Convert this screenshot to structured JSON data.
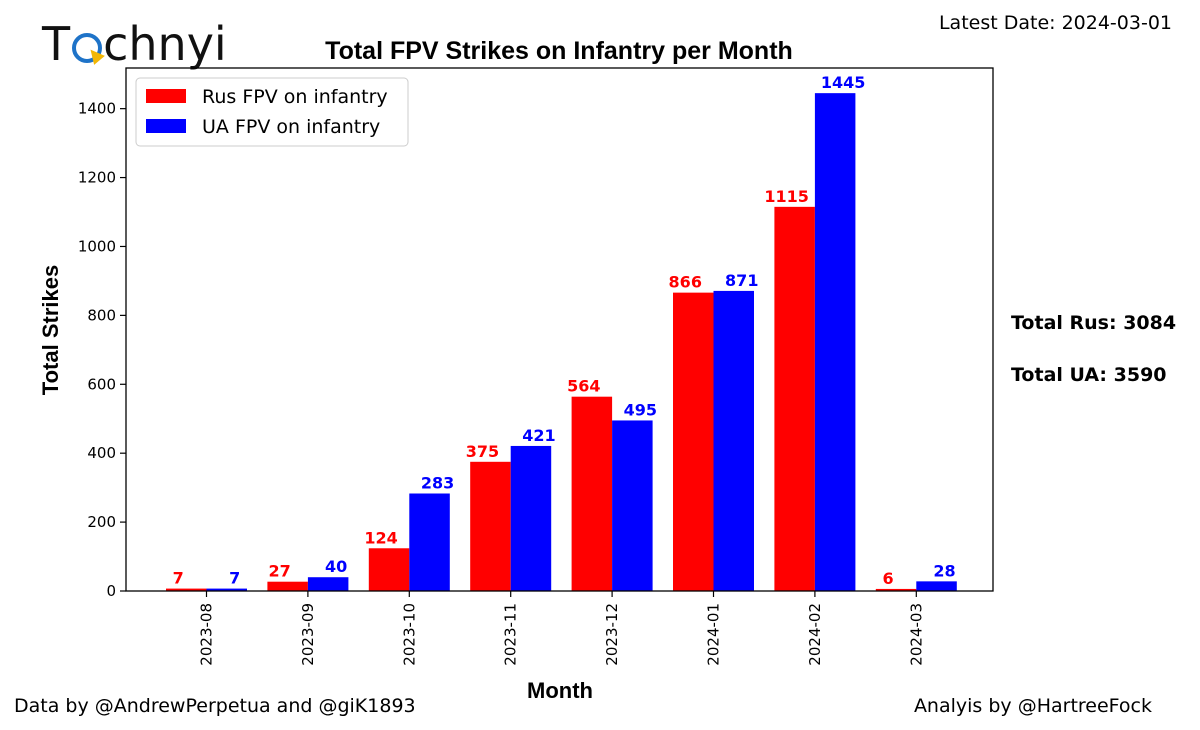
{
  "brand": {
    "logo_text_before": "T",
    "logo_text_after": "chnyi"
  },
  "header": {
    "latest_date": "Latest Date: 2024-03-01"
  },
  "footer": {
    "data_credit": "Data by @AndrewPerpetua and @giK1893",
    "analysis_credit": "Analyis by @HartreeFock"
  },
  "totals": {
    "rus": "Total Rus: 3084",
    "ua": "Total UA: 3590"
  },
  "colors": {
    "rus": "#ff0000",
    "ua": "#0000ff"
  },
  "chart_data": {
    "type": "bar",
    "title": "Total FPV Strikes on Infantry per Month",
    "xlabel": "Month",
    "ylabel": "Total Strikes",
    "ylim": [
      0,
      1518
    ],
    "yticks": [
      0,
      200,
      400,
      600,
      800,
      1000,
      1200,
      1400
    ],
    "categories": [
      "2023-08",
      "2023-09",
      "2023-10",
      "2023-11",
      "2023-12",
      "2024-01",
      "2024-02",
      "2024-03"
    ],
    "series": [
      {
        "name": "Rus FPV on infantry",
        "values": [
          7,
          27,
          124,
          375,
          564,
          866,
          1115,
          6
        ]
      },
      {
        "name": "UA FPV on infantry",
        "values": [
          7,
          40,
          283,
          421,
          495,
          871,
          1445,
          28
        ]
      }
    ],
    "legend_position": "top-left",
    "grid": false
  }
}
